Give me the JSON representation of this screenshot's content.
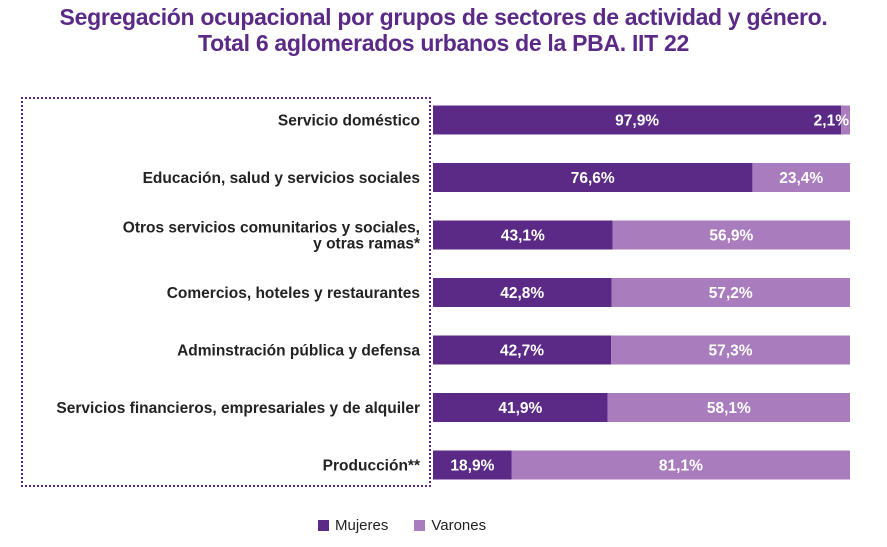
{
  "title_line1": "Segregación ocupacional por grupos de sectores de actividad y género.",
  "title_line2": "Total 6 aglomerados urbanos de la PBA. IIT 22",
  "colors": {
    "mujeres": "#5b2a86",
    "varones": "#a97cbd",
    "accent": "#5b2a86"
  },
  "chart_data": {
    "type": "bar",
    "orientation": "horizontal",
    "stacked": "100%",
    "title": "Segregación ocupacional por grupos de sectores de actividad y género. Total 6 aglomerados urbanos de la PBA. IIT 22",
    "categories": [
      [
        "Servicio doméstico"
      ],
      [
        "Educación, salud y servicios sociales"
      ],
      [
        "Otros servicios comunitarios y sociales,",
        "y otras ramas*"
      ],
      [
        "Comercios, hoteles y restaurantes"
      ],
      [
        "Adminstración pública y defensa"
      ],
      [
        "Servicios financieros, empresariales y de alquiler"
      ],
      [
        "Producción**"
      ]
    ],
    "series": [
      {
        "name": "Mujeres",
        "values": [
          97.9,
          76.6,
          43.1,
          42.8,
          42.7,
          41.9,
          18.9
        ],
        "labels": [
          "97,9%",
          "76,6%",
          "43,1%",
          "42,8%",
          "42,7%",
          "41,9%",
          "18,9%"
        ]
      },
      {
        "name": "Varones",
        "values": [
          2.1,
          23.4,
          56.9,
          57.2,
          57.3,
          58.1,
          81.1
        ],
        "labels": [
          "2,1%",
          "23,4%",
          "56,9%",
          "57,2%",
          "57,3%",
          "58,1%",
          "81,1%"
        ]
      }
    ],
    "xlim": [
      0,
      100
    ],
    "grid": false,
    "legend_position": "bottom"
  },
  "legend": {
    "mujeres": "Mujeres",
    "varones": "Varones"
  }
}
